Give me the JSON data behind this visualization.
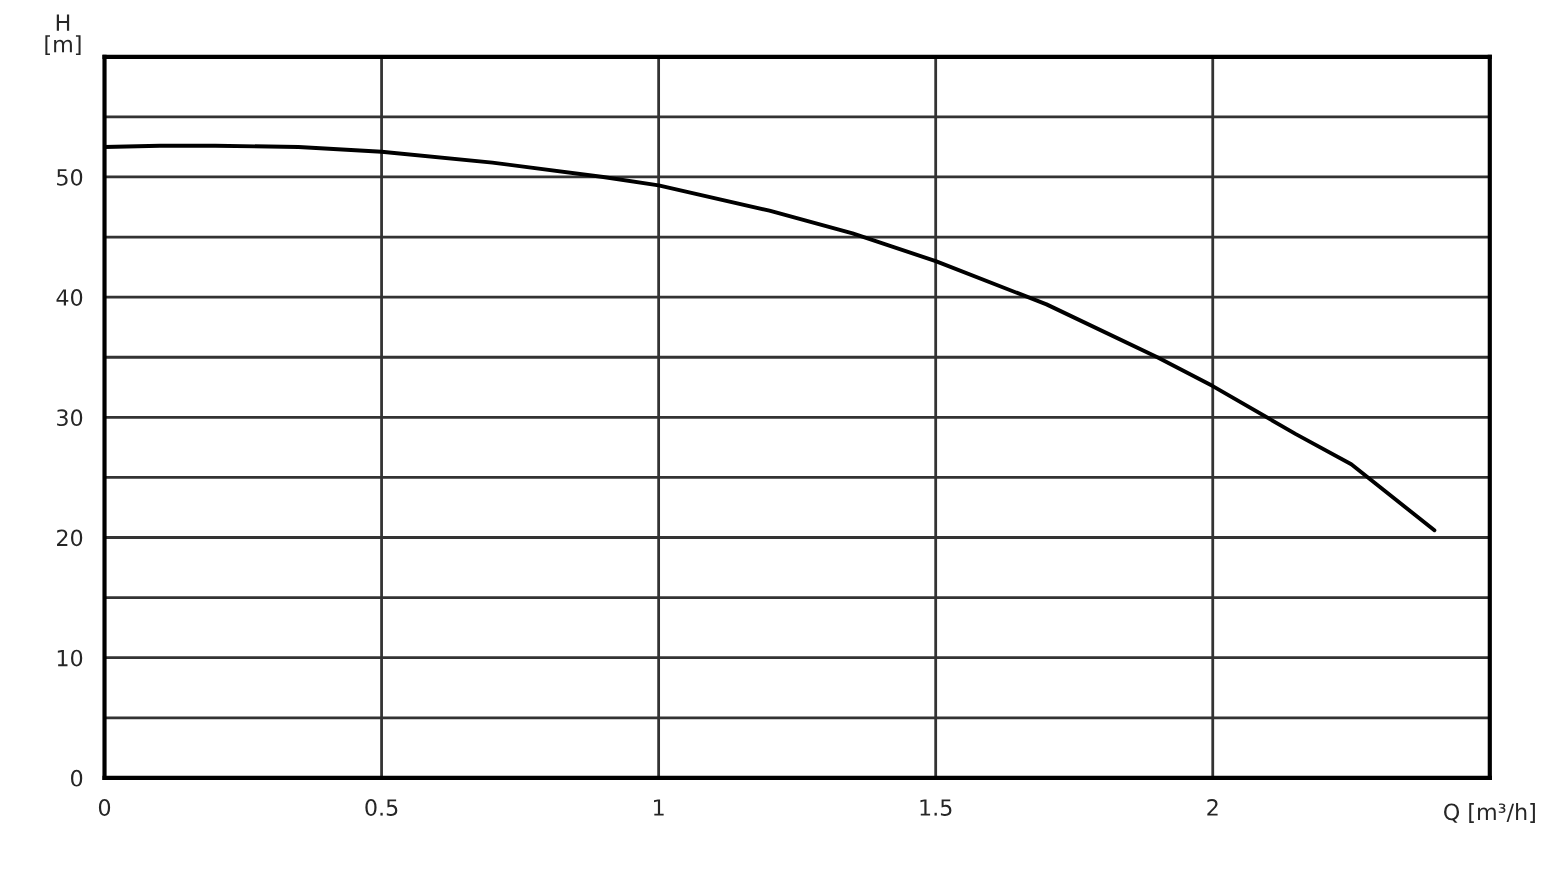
{
  "chart_data": {
    "type": "line",
    "xlabel": "Q [m³/h]",
    "ylabel": "H\n[m]",
    "x": [
      0,
      0.1,
      0.2,
      0.35,
      0.5,
      0.7,
      0.9,
      1.0,
      1.2,
      1.35,
      1.5,
      1.7,
      1.9,
      2.0,
      2.15,
      2.25,
      2.4
    ],
    "series": [
      {
        "color": "#000000",
        "values": [
          52.5,
          52.6,
          52.6,
          52.5,
          52.1,
          51.2,
          50.0,
          49.3,
          47.2,
          45.3,
          43.0,
          39.4,
          35.0,
          32.6,
          28.6,
          26.1,
          20.6
        ]
      }
    ],
    "xlim": [
      0,
      2.5
    ],
    "xticks": [
      0,
      0.5,
      1,
      1.5,
      2,
      {
        "value": 2.5,
        "label": null
      }
    ],
    "ylim": [
      0,
      60
    ],
    "yticks": [
      0,
      {
        "value": 5,
        "label": null
      },
      10,
      {
        "value": 15,
        "label": null
      },
      20,
      {
        "value": 25,
        "label": null
      },
      30,
      {
        "value": 35,
        "label": null
      },
      40,
      {
        "value": 45,
        "label": null
      },
      50,
      {
        "value": 55,
        "label": null
      }
    ],
    "grid": true,
    "marker": "none",
    "line_style": "solid"
  }
}
